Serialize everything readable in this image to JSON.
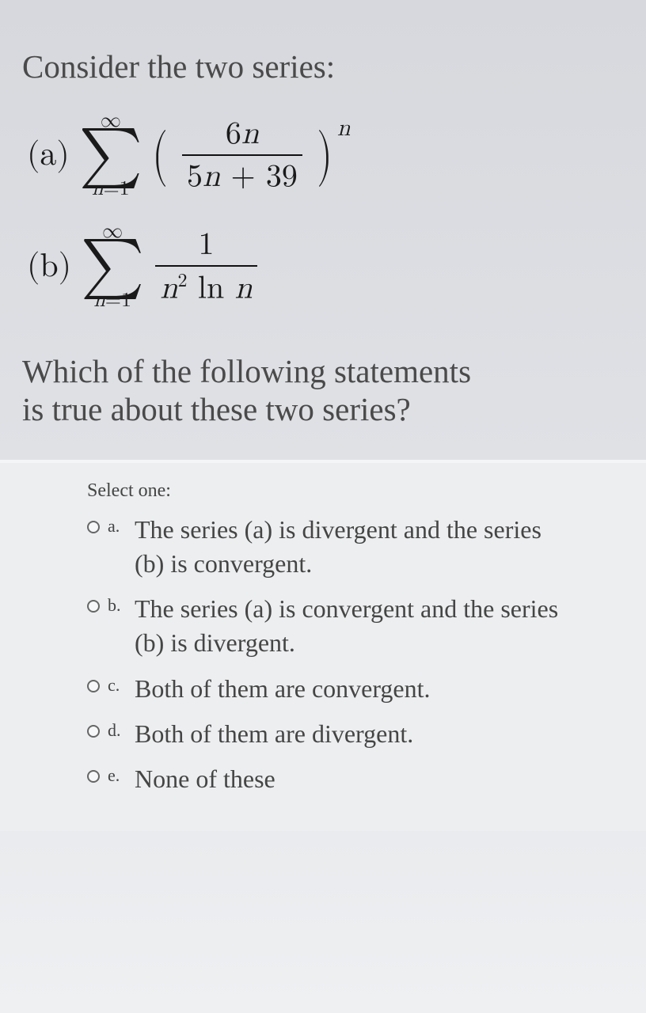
{
  "question": {
    "intro": "Consider the two series:",
    "prompt_line1": "Which of the following statements",
    "prompt_line2": "is true about these two series?"
  },
  "series": {
    "a": {
      "label": "(a)",
      "sigma_top": "∞",
      "sigma_bottom_var": "n",
      "sigma_bottom_rest": "=1",
      "frac_num_coeff": "6",
      "frac_num_var": "n",
      "frac_den_coeff": "5",
      "frac_den_var": "n",
      "frac_den_rest": " + 39",
      "power": "n"
    },
    "b": {
      "label": "(b)",
      "sigma_top": "∞",
      "sigma_bottom_var": "n",
      "sigma_bottom_rest": "=1",
      "frac_num": "1",
      "frac_den_var1": "n",
      "frac_den_sup": "2",
      "frac_den_ln": " ln ",
      "frac_den_var2": "n"
    }
  },
  "answers": {
    "select_label": "Select one:",
    "options": [
      {
        "letter": "a.",
        "text": "The series (a) is divergent and the series (b) is convergent."
      },
      {
        "letter": "b.",
        "text": "The series (a) is convergent and the series (b) is divergent."
      },
      {
        "letter": "c.",
        "text": "Both of them are convergent."
      },
      {
        "letter": "d.",
        "text": "Both of them are divergent."
      },
      {
        "letter": "e.",
        "text": "None of these"
      }
    ]
  },
  "colors": {
    "text_body": "#4a4a4a",
    "text_math": "#1a1a1a",
    "text_option": "#454545",
    "radio_border": "#666666",
    "bg_upper": "#d9dbe0",
    "bg_lower": "#eceef0"
  },
  "typography": {
    "question_fontsize_pt": 31,
    "math_fontsize_pt": 30,
    "option_fontsize_pt": 24,
    "select_label_fontsize_pt": 18,
    "font_family_body": "Georgia, serif",
    "font_family_math": "Latin Modern Math, Cambria Math, serif"
  }
}
